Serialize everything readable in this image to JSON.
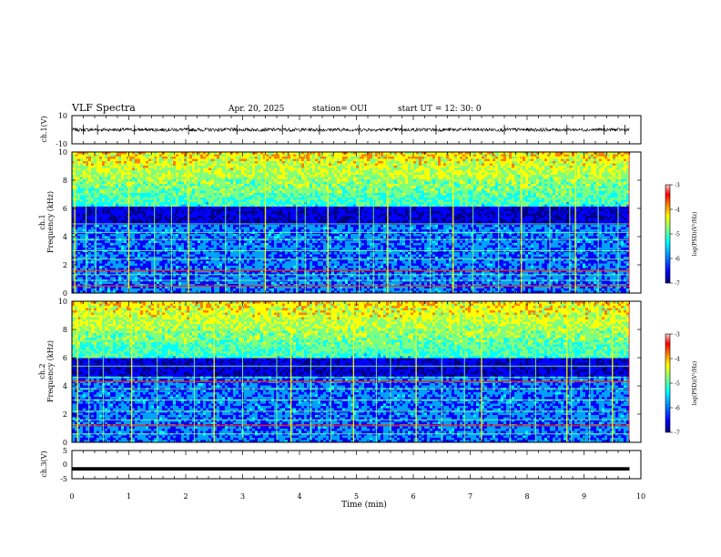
{
  "header": {
    "title": "VLF Spectra",
    "date": "Apr. 20, 2025",
    "station": "station= OUI",
    "start": "start  UT  =   12: 30: 0"
  },
  "chart_data": [
    {
      "type": "line",
      "panel": "ch1-waveform",
      "ylabel": "ch.1(V)",
      "ylim": [
        -10,
        10
      ],
      "yticks": [
        10,
        -10
      ],
      "xlim": [
        0,
        10
      ],
      "baseline": 0,
      "amplitude": 1.2,
      "data_end_min": 9.8,
      "spikes_min": [
        0.2,
        0.45,
        1.1,
        2.05,
        2.9,
        3.7,
        4.35,
        5.05,
        5.8,
        6.4,
        7.6,
        8.7,
        9.35,
        9.72
      ],
      "grid": false
    },
    {
      "type": "heatmap",
      "panel": "ch1-spectrogram",
      "ylabel": "Frequency (kHz)",
      "channel_label": "ch.1",
      "ylim": [
        0,
        10
      ],
      "yticks": [
        10,
        8,
        6,
        4,
        2,
        0
      ],
      "xlim": [
        0,
        10
      ],
      "data_end_min": 9.8,
      "colorbar": {
        "label": "log(PSD)(V²/Hz)",
        "range": [
          -7,
          -3
        ],
        "ticks": [
          "-3",
          "-4",
          "-5",
          "-6",
          "-7"
        ]
      },
      "lines_khz": [
        0.5,
        0.9,
        1.3,
        1.6,
        2.4,
        3.0,
        3.8,
        4.3,
        4.9
      ],
      "bright_lines_khz": [
        0.5,
        1.6
      ],
      "dark_band_khz": [
        4.8,
        6.2
      ],
      "sferic_min": [
        0.05,
        0.25,
        0.42,
        1.0,
        1.45,
        1.75,
        2.05,
        2.7,
        2.95,
        3.4,
        3.95,
        4.1,
        4.5,
        5.05,
        5.3,
        5.55,
        5.95,
        6.3,
        6.7,
        7.05,
        7.5,
        7.9,
        8.4,
        8.75,
        8.85,
        9.25,
        9.6
      ],
      "grid": false
    },
    {
      "type": "heatmap",
      "panel": "ch2-spectrogram",
      "ylabel": "Frequency (kHz)",
      "channel_label": "ch.2",
      "ylim": [
        0,
        10
      ],
      "yticks": [
        10,
        8,
        6,
        4,
        2,
        0
      ],
      "xlim": [
        0,
        10
      ],
      "data_end_min": 9.8,
      "colorbar": {
        "label": "log(PSD)(V²/Hz)",
        "range": [
          -7,
          -3
        ],
        "ticks": [
          "-3",
          "-4",
          "-5",
          "-6",
          "-7"
        ]
      },
      "lines_khz": [
        0.6,
        1.2,
        1.6,
        2.2,
        3.0,
        3.8,
        4.3,
        4.6,
        5.4
      ],
      "bright_lines_khz": [
        1.2,
        4.3
      ],
      "dark_band_khz": [
        4.6,
        6.0
      ],
      "sferic_min": [
        0.1,
        0.3,
        0.55,
        1.05,
        1.5,
        2.15,
        2.5,
        3.0,
        3.6,
        3.85,
        4.2,
        4.55,
        4.95,
        5.35,
        5.6,
        6.05,
        6.5,
        6.9,
        7.2,
        7.7,
        8.15,
        8.7,
        8.78,
        9.1,
        9.5
      ],
      "grid": false
    },
    {
      "type": "line",
      "panel": "ch3-waveform",
      "ylabel": "ch.3(V)",
      "ylim": [
        -5,
        5
      ],
      "yticks": [
        5,
        0,
        -5
      ],
      "xlim": [
        0,
        10
      ],
      "baseline": -1.5,
      "amplitude": 0.15,
      "data_end_min": 9.8,
      "grid": false
    }
  ],
  "xaxis": {
    "label": "Time (min)",
    "ticks": [
      "0",
      "1",
      "2",
      "3",
      "4",
      "5",
      "6",
      "7",
      "8",
      "9",
      "10"
    ]
  },
  "colors": {
    "colormap": [
      "#00007f",
      "#0000ff",
      "#00a0ff",
      "#00ffff",
      "#7fff7f",
      "#ffff00",
      "#ff7f00",
      "#ff0000",
      "#ffc8c8"
    ]
  }
}
